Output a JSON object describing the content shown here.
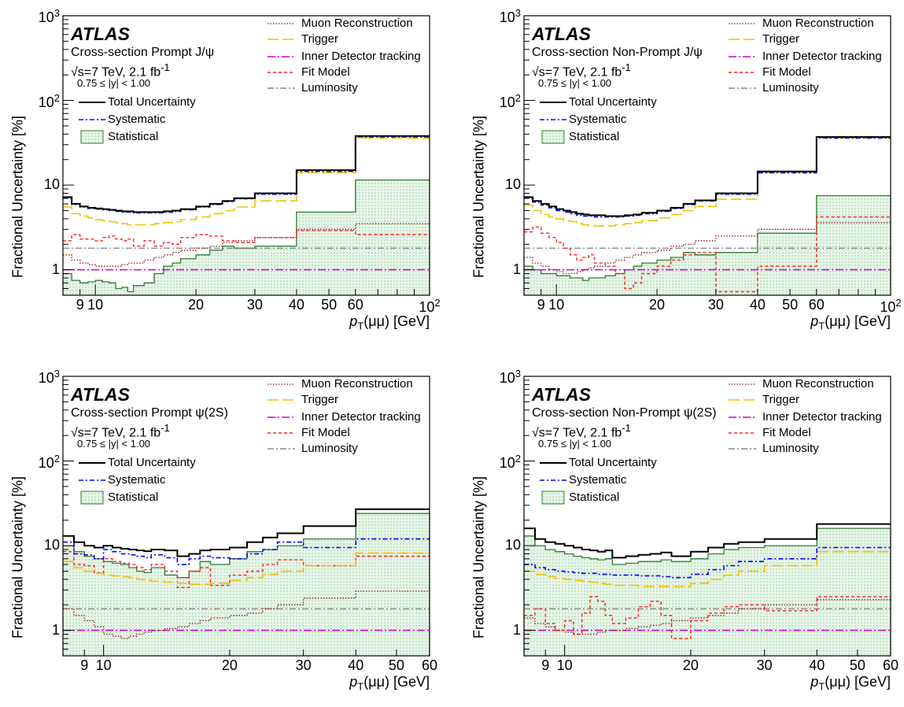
{
  "common": {
    "atlas": "ATLAS",
    "energy": "√s=7 TeV, 2.1 fb",
    "energy_sup": "-1",
    "rapidity": "0.75 ≤ |y| < 1.00",
    "ylabel": "Fractional Uncertainty [%]",
    "xlabel_p": "p",
    "xlabel_sub": "T",
    "xlabel_rest": "(μμ) [GeV]",
    "legend_right": [
      "Muon Reconstruction",
      "Trigger",
      "Inner Detector tracking",
      "Fit Model",
      "Luminosity"
    ],
    "legend_left": [
      "Total Uncertainty",
      "Systematic",
      "Statistical"
    ],
    "ytick_base": "10",
    "yticks": [
      {
        "v": 1,
        "t": "1"
      },
      {
        "v": 10,
        "t": "10"
      },
      {
        "v": 100,
        "t": "",
        "exp": "2"
      },
      {
        "v": 1000,
        "t": "",
        "exp": "3"
      }
    ]
  },
  "colors": {
    "muon": "#8b1a1a",
    "trigger": "#f2c200",
    "inner": "#cc00cc",
    "fit": "#ff2020",
    "lumi": "#707070",
    "total": "#000000",
    "syst": "#0000ff",
    "stat_line": "#2e7d32",
    "stat_fill": "#a5d6a7"
  },
  "chart_data": [
    {
      "type": "step",
      "title": "Cross-section Prompt J/ψ",
      "xlim": [
        8,
        100
      ],
      "ylim": [
        0.5,
        1000
      ],
      "xscale": "log",
      "yscale": "log",
      "xticks": [
        {
          "v": 9,
          "t": "9"
        },
        {
          "v": 10,
          "t": "10"
        },
        {
          "v": 20,
          "t": "20"
        },
        {
          "v": 30,
          "t": "30"
        },
        {
          "v": 40,
          "t": "40"
        },
        {
          "v": 50,
          "t": "50"
        },
        {
          "v": 60,
          "t": "60"
        },
        {
          "v": 100,
          "t": "10",
          "exp": "2"
        }
      ],
      "edges": [
        8,
        8.5,
        9,
        9.5,
        10,
        10.5,
        11,
        11.5,
        12,
        12.5,
        13,
        14,
        15,
        16,
        17,
        18,
        20,
        22,
        24,
        26,
        30,
        40,
        60,
        100
      ],
      "series": [
        {
          "key": "total",
          "values": [
            7.2,
            6.0,
            5.6,
            5.4,
            5.3,
            5.2,
            5.1,
            5.0,
            4.9,
            4.9,
            4.8,
            4.8,
            4.8,
            4.9,
            5.0,
            5.2,
            5.6,
            6.0,
            6.5,
            7.0,
            8.0,
            15,
            38
          ]
        },
        {
          "key": "syst",
          "values": [
            7.0,
            5.9,
            5.5,
            5.3,
            5.2,
            5.1,
            5.0,
            4.9,
            4.8,
            4.8,
            4.7,
            4.7,
            4.7,
            4.8,
            4.9,
            5.1,
            5.5,
            5.9,
            6.4,
            6.9,
            7.8,
            14.5,
            37
          ]
        },
        {
          "key": "trigger",
          "values": [
            5.5,
            4.6,
            4.3,
            4.1,
            3.9,
            3.8,
            3.7,
            3.6,
            3.5,
            3.4,
            3.4,
            3.4,
            3.5,
            3.6,
            3.7,
            3.9,
            4.2,
            4.6,
            5.0,
            5.5,
            6.5,
            14,
            36
          ]
        },
        {
          "key": "fit",
          "values": [
            2.2,
            2.6,
            2.3,
            2.3,
            2.2,
            2.4,
            2.5,
            2.3,
            2.2,
            2.3,
            1.9,
            2.2,
            1.9,
            2.1,
            2.0,
            2.4,
            2.6,
            2.5,
            2.2,
            2.1,
            2.4,
            2.9,
            2.6
          ]
        },
        {
          "key": "muon",
          "values": [
            1.5,
            1.3,
            1.2,
            1.15,
            1.1,
            1.1,
            1.1,
            1.1,
            1.15,
            1.2,
            1.2,
            1.3,
            1.4,
            1.5,
            1.6,
            1.7,
            1.8,
            1.9,
            2.1,
            2.2,
            2.4,
            3.0,
            3.5
          ]
        },
        {
          "key": "stat",
          "values": [
            0.9,
            0.75,
            0.7,
            0.72,
            0.75,
            0.72,
            0.7,
            0.6,
            0.62,
            0.55,
            0.65,
            0.7,
            0.9,
            1.1,
            1.2,
            1.35,
            1.5,
            1.7,
            1.9,
            1.8,
            1.9,
            4.8,
            11.5
          ]
        },
        {
          "key": "inner",
          "constant": 1.0
        },
        {
          "key": "lumi",
          "constant": 1.8
        }
      ]
    },
    {
      "type": "step",
      "title": "Cross-section Non-Prompt J/ψ",
      "xlim": [
        8,
        100
      ],
      "ylim": [
        0.5,
        1000
      ],
      "xscale": "log",
      "yscale": "log",
      "xticks": [
        {
          "v": 9,
          "t": "9"
        },
        {
          "v": 10,
          "t": "10"
        },
        {
          "v": 20,
          "t": "20"
        },
        {
          "v": 30,
          "t": "30"
        },
        {
          "v": 40,
          "t": "40"
        },
        {
          "v": 50,
          "t": "50"
        },
        {
          "v": 60,
          "t": "60"
        },
        {
          "v": 100,
          "t": "10",
          "exp": "2"
        }
      ],
      "edges": [
        8,
        8.5,
        9,
        9.5,
        10,
        10.5,
        11,
        11.5,
        12,
        12.5,
        13,
        14,
        15,
        16,
        17,
        18,
        20,
        22,
        24,
        26,
        30,
        40,
        60,
        100
      ],
      "series": [
        {
          "key": "total",
          "values": [
            7.2,
            6.5,
            6.0,
            5.6,
            5.2,
            5.0,
            4.8,
            4.6,
            4.5,
            4.4,
            4.4,
            4.3,
            4.3,
            4.4,
            4.5,
            4.7,
            5.0,
            5.4,
            6.0,
            6.6,
            8.0,
            14.5,
            37
          ]
        },
        {
          "key": "syst",
          "values": [
            7.0,
            6.3,
            5.8,
            5.4,
            5.0,
            4.8,
            4.6,
            4.4,
            4.3,
            4.3,
            4.2,
            4.2,
            4.2,
            4.3,
            4.4,
            4.6,
            4.9,
            5.3,
            5.9,
            6.5,
            7.8,
            14,
            36
          ]
        },
        {
          "key": "trigger",
          "values": [
            5.8,
            5.0,
            4.5,
            4.2,
            4.0,
            3.8,
            3.7,
            3.5,
            3.4,
            3.3,
            3.3,
            3.3,
            3.4,
            3.5,
            3.6,
            3.8,
            4.1,
            4.5,
            5.0,
            5.6,
            6.8,
            14,
            36
          ]
        },
        {
          "key": "fit",
          "values": [
            2.8,
            3.2,
            2.7,
            2.4,
            2.1,
            1.8,
            1.5,
            1.3,
            1.4,
            1.5,
            1.2,
            1.1,
            0.9,
            0.6,
            0.7,
            0.9,
            1.1,
            1.3,
            1.5,
            1.6,
            0.55,
            1.1,
            4.2
          ]
        },
        {
          "key": "muon",
          "values": [
            1.4,
            1.2,
            1.1,
            1.0,
            0.95,
            0.9,
            0.9,
            0.95,
            1.0,
            1.05,
            1.1,
            1.2,
            1.3,
            1.4,
            1.5,
            1.6,
            1.7,
            1.9,
            2.0,
            2.2,
            2.5,
            3.0,
            3.6
          ]
        },
        {
          "key": "stat",
          "values": [
            1.1,
            1.0,
            0.9,
            0.9,
            0.85,
            0.85,
            0.8,
            0.8,
            0.75,
            0.8,
            0.8,
            0.85,
            0.9,
            1.0,
            1.1,
            1.2,
            1.3,
            1.4,
            1.6,
            1.5,
            1.6,
            2.7,
            7.5
          ]
        },
        {
          "key": "inner",
          "constant": 1.0
        },
        {
          "key": "lumi",
          "constant": 1.8
        }
      ]
    },
    {
      "type": "step",
      "title": "Cross-section Prompt ψ(2S)",
      "xlim": [
        8,
        60
      ],
      "ylim": [
        0.5,
        1000
      ],
      "xscale": "log",
      "yscale": "log",
      "xticks": [
        {
          "v": 9,
          "t": "9"
        },
        {
          "v": 10,
          "t": "10"
        },
        {
          "v": 20,
          "t": "20"
        },
        {
          "v": 30,
          "t": "30"
        },
        {
          "v": 40,
          "t": "40"
        },
        {
          "v": 50,
          "t": "50"
        },
        {
          "v": 60,
          "t": "60"
        }
      ],
      "edges": [
        8,
        8.5,
        9,
        9.5,
        10,
        10.5,
        11,
        11.5,
        12,
        12.5,
        13,
        14,
        15,
        16,
        17,
        18,
        20,
        22,
        24,
        26,
        30,
        40,
        60
      ],
      "series": [
        {
          "key": "total",
          "values": [
            13,
            11,
            10,
            9.5,
            10,
            9.5,
            9.2,
            9.0,
            8.8,
            8.6,
            9.0,
            8.8,
            7.5,
            8.0,
            8.8,
            9.0,
            9.5,
            11,
            12.5,
            14,
            17,
            27
          ]
        },
        {
          "key": "syst",
          "values": [
            11,
            8.0,
            7.8,
            7.0,
            9.0,
            8.5,
            8.0,
            7.8,
            7.5,
            7.2,
            7.8,
            7.2,
            6.0,
            7.0,
            7.5,
            7.2,
            7.0,
            8.0,
            9.0,
            11,
            9.5,
            12
          ]
        },
        {
          "key": "trigger",
          "values": [
            6.5,
            5.5,
            5.0,
            4.7,
            4.5,
            4.4,
            4.3,
            4.2,
            4.0,
            3.9,
            3.8,
            3.7,
            3.6,
            3.5,
            3.5,
            3.6,
            3.9,
            4.2,
            4.6,
            5.0,
            5.8,
            8.2
          ]
        },
        {
          "key": "fit",
          "values": [
            8.5,
            6.0,
            5.8,
            4.8,
            7.0,
            6.5,
            6.2,
            6.0,
            5.5,
            5.2,
            6.0,
            5.0,
            3.2,
            5.0,
            5.5,
            3.4,
            4.5,
            5.0,
            6.0,
            6.8,
            5.8,
            7.5
          ]
        },
        {
          "key": "muon",
          "values": [
            1.8,
            1.5,
            1.3,
            1.1,
            0.9,
            0.85,
            0.8,
            0.85,
            0.9,
            0.95,
            1.0,
            1.05,
            1.1,
            1.2,
            1.3,
            1.4,
            1.5,
            1.6,
            1.8,
            2.0,
            2.4,
            2.9
          ]
        },
        {
          "key": "stat",
          "values": [
            10,
            8.5,
            7.5,
            7.0,
            6.5,
            6.2,
            6.0,
            5.5,
            5.0,
            4.8,
            5.5,
            4.5,
            4.2,
            5.0,
            6.5,
            6.0,
            7.0,
            8.5,
            9.0,
            10,
            12,
            24
          ]
        },
        {
          "key": "inner",
          "constant": 1.0
        },
        {
          "key": "lumi",
          "constant": 1.8
        }
      ]
    },
    {
      "type": "step",
      "title": "Cross-section Non-Prompt ψ(2S)",
      "xlim": [
        8,
        60
      ],
      "ylim": [
        0.5,
        1000
      ],
      "xscale": "log",
      "yscale": "log",
      "xticks": [
        {
          "v": 9,
          "t": "9"
        },
        {
          "v": 10,
          "t": "10"
        },
        {
          "v": 20,
          "t": "20"
        },
        {
          "v": 30,
          "t": "30"
        },
        {
          "v": 40,
          "t": "40"
        },
        {
          "v": 50,
          "t": "50"
        },
        {
          "v": 60,
          "t": "60"
        }
      ],
      "edges": [
        8,
        8.5,
        9,
        9.5,
        10,
        10.5,
        11,
        11.5,
        12,
        12.5,
        13,
        14,
        15,
        16,
        17,
        18,
        20,
        22,
        24,
        26,
        30,
        40,
        60
      ],
      "series": [
        {
          "key": "total",
          "values": [
            16,
            12,
            11,
            10.5,
            10,
            9.5,
            9.0,
            8.8,
            8.5,
            8.8,
            7.2,
            7.5,
            7.8,
            8.0,
            8.3,
            7.5,
            8.5,
            9.5,
            10.5,
            11,
            12,
            18
          ]
        },
        {
          "key": "syst",
          "values": [
            6.0,
            5.5,
            5.2,
            5.0,
            4.9,
            4.8,
            4.7,
            4.7,
            4.6,
            4.6,
            4.5,
            4.5,
            4.4,
            4.4,
            4.3,
            4.2,
            4.6,
            5.2,
            5.8,
            6.5,
            7.0,
            9.5
          ]
        },
        {
          "key": "trigger",
          "values": [
            5.0,
            4.6,
            4.3,
            4.1,
            4.0,
            3.9,
            3.8,
            3.7,
            3.6,
            3.5,
            3.4,
            3.4,
            3.3,
            3.3,
            3.3,
            3.3,
            3.6,
            4.0,
            4.5,
            5.0,
            5.8,
            8.5
          ]
        },
        {
          "key": "fit",
          "values": [
            1.5,
            1.8,
            1.2,
            1.0,
            1.3,
            0.9,
            1.6,
            2.5,
            2.2,
            1.5,
            1.2,
            1.4,
            1.9,
            2.2,
            1.5,
            0.8,
            1.3,
            1.6,
            1.9,
            2.0,
            1.7,
            2.5
          ]
        },
        {
          "key": "muon",
          "values": [
            1.4,
            1.2,
            1.1,
            1.0,
            0.95,
            0.9,
            0.9,
            0.9,
            0.95,
            1.0,
            1.0,
            1.05,
            1.1,
            1.15,
            1.2,
            1.3,
            1.4,
            1.5,
            1.6,
            1.8,
            2.0,
            2.3
          ]
        },
        {
          "key": "stat",
          "values": [
            13,
            10,
            9.0,
            8.5,
            8.0,
            7.5,
            7.2,
            7.0,
            6.8,
            7.0,
            6.0,
            6.2,
            6.5,
            6.5,
            6.8,
            6.5,
            7.0,
            8.0,
            9.0,
            9.5,
            10,
            16
          ]
        },
        {
          "key": "inner",
          "constant": 1.0
        },
        {
          "key": "lumi",
          "constant": 1.8
        }
      ]
    }
  ]
}
